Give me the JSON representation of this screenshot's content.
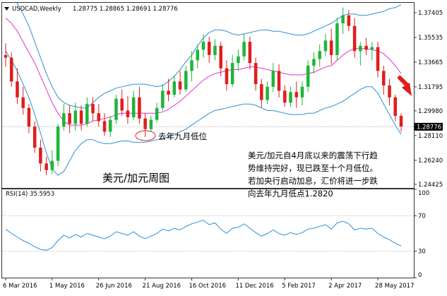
{
  "header": {
    "symbol": "USDCAD,Weekly",
    "ohlc": "1.28775 1.28865 1.28691 1.28776"
  },
  "annotations": {
    "last_year_low": "去年九月低位",
    "chart_label": "美元/加元周图",
    "note_lines": [
      "美元/加元自4月底以来的震荡下行趋",
      "势维持完好，现已跌至十个月低位。",
      "若加央行启动加息，汇价将进一步跌",
      "向去年九月低点1.2820"
    ]
  },
  "rsi_panel": {
    "label": "RSI(14) 35.5953"
  },
  "chart_data": [
    {
      "type": "candlestick",
      "price_ticks": [
        "1.37405",
        "1.35535",
        "1.33665",
        "1.31795",
        "1.29980",
        "1.28110",
        "1.26240",
        "1.24425"
      ],
      "price_tick_values": [
        1.37405,
        1.35535,
        1.33665,
        1.31795,
        1.2998,
        1.2811,
        1.2624,
        1.24425
      ],
      "current_price": "1.28776",
      "ylim": [
        1.2415,
        1.3815
      ],
      "x_tick_labels": [
        "6 Mar 2016",
        "1 May 2016",
        "26 Jun 2016",
        "21 Aug 2016",
        "16 Oct 2016",
        "11 Dec 2016",
        "5 Feb 2017",
        "2 Apr 2017",
        "28 May 2017"
      ],
      "x_tick_week_index": [
        0,
        8,
        16,
        24,
        32,
        40,
        48,
        56,
        64
      ],
      "bars_week_start": "6 Mar 2016",
      "colors": {
        "up": "#1fb53a",
        "down": "#e01e1e",
        "bands": "#2e8fd6",
        "middle": "#e033d6"
      },
      "ohlc": [
        [
          1.342,
          1.351,
          1.333,
          1.34
        ],
        [
          1.34,
          1.344,
          1.318,
          1.322
        ],
        [
          1.322,
          1.332,
          1.305,
          1.31
        ],
        [
          1.31,
          1.318,
          1.297,
          1.302
        ],
        [
          1.302,
          1.305,
          1.283,
          1.288
        ],
        [
          1.288,
          1.292,
          1.268,
          1.272
        ],
        [
          1.272,
          1.278,
          1.254,
          1.26
        ],
        [
          1.26,
          1.265,
          1.251,
          1.255
        ],
        [
          1.255,
          1.27,
          1.252,
          1.262
        ],
        [
          1.262,
          1.29,
          1.258,
          1.288
        ],
        [
          1.288,
          1.305,
          1.285,
          1.298
        ],
        [
          1.298,
          1.304,
          1.283,
          1.29
        ],
        [
          1.29,
          1.306,
          1.285,
          1.3
        ],
        [
          1.3,
          1.304,
          1.285,
          1.29
        ],
        [
          1.29,
          1.31,
          1.288,
          1.305
        ],
        [
          1.305,
          1.31,
          1.292,
          1.298
        ],
        [
          1.298,
          1.305,
          1.288,
          1.292
        ],
        [
          1.292,
          1.298,
          1.281,
          1.284
        ],
        [
          1.284,
          1.296,
          1.28,
          1.293
        ],
        [
          1.293,
          1.312,
          1.29,
          1.309
        ],
        [
          1.309,
          1.316,
          1.296,
          1.3
        ],
        [
          1.3,
          1.311,
          1.29,
          1.295
        ],
        [
          1.295,
          1.315,
          1.293,
          1.31
        ],
        [
          1.31,
          1.318,
          1.29,
          1.294
        ],
        [
          1.294,
          1.298,
          1.28,
          1.286
        ],
        [
          1.286,
          1.296,
          1.284,
          1.293
        ],
        [
          1.293,
          1.306,
          1.291,
          1.302
        ],
        [
          1.302,
          1.32,
          1.3,
          1.315
        ],
        [
          1.315,
          1.324,
          1.307,
          1.312
        ],
        [
          1.312,
          1.326,
          1.31,
          1.322
        ],
        [
          1.322,
          1.33,
          1.312,
          1.316
        ],
        [
          1.316,
          1.334,
          1.314,
          1.33
        ],
        [
          1.33,
          1.345,
          1.322,
          1.338
        ],
        [
          1.338,
          1.35,
          1.332,
          1.346
        ],
        [
          1.346,
          1.358,
          1.34,
          1.352
        ],
        [
          1.352,
          1.356,
          1.336,
          1.342
        ],
        [
          1.342,
          1.354,
          1.338,
          1.349
        ],
        [
          1.349,
          1.352,
          1.326,
          1.332
        ],
        [
          1.332,
          1.338,
          1.315,
          1.32
        ],
        [
          1.32,
          1.342,
          1.318,
          1.336
        ],
        [
          1.336,
          1.346,
          1.33,
          1.341
        ],
        [
          1.341,
          1.358,
          1.338,
          1.352
        ],
        [
          1.352,
          1.356,
          1.331,
          1.336
        ],
        [
          1.336,
          1.34,
          1.315,
          1.32
        ],
        [
          1.32,
          1.324,
          1.302,
          1.308
        ],
        [
          1.308,
          1.322,
          1.305,
          1.318
        ],
        [
          1.318,
          1.336,
          1.314,
          1.33
        ],
        [
          1.33,
          1.335,
          1.31,
          1.315
        ],
        [
          1.315,
          1.319,
          1.303,
          1.306
        ],
        [
          1.306,
          1.318,
          1.303,
          1.314
        ],
        [
          1.314,
          1.322,
          1.302,
          1.31
        ],
        [
          1.31,
          1.322,
          1.304,
          1.318
        ],
        [
          1.318,
          1.338,
          1.314,
          1.334
        ],
        [
          1.334,
          1.344,
          1.328,
          1.339
        ],
        [
          1.339,
          1.35,
          1.333,
          1.345
        ],
        [
          1.345,
          1.358,
          1.341,
          1.353
        ],
        [
          1.353,
          1.362,
          1.335,
          1.342
        ],
        [
          1.342,
          1.37,
          1.338,
          1.366
        ],
        [
          1.366,
          1.378,
          1.358,
          1.372
        ],
        [
          1.372,
          1.376,
          1.36,
          1.364
        ],
        [
          1.364,
          1.37,
          1.34,
          1.345
        ],
        [
          1.345,
          1.352,
          1.334,
          1.349
        ],
        [
          1.349,
          1.355,
          1.342,
          1.346
        ],
        [
          1.346,
          1.352,
          1.338,
          1.348
        ],
        [
          1.348,
          1.352,
          1.325,
          1.33
        ],
        [
          1.33,
          1.334,
          1.312,
          1.319
        ],
        [
          1.319,
          1.324,
          1.304,
          1.31
        ],
        [
          1.31,
          1.312,
          1.292,
          1.296
        ],
        [
          1.296,
          1.298,
          1.284,
          1.288
        ]
      ],
      "upper_band": [
        1.395,
        1.388,
        1.381,
        1.373,
        1.364,
        1.352,
        1.34,
        1.328,
        1.318,
        1.31,
        1.306,
        1.304,
        1.303,
        1.302,
        1.302,
        1.306,
        1.31,
        1.313,
        1.315,
        1.317,
        1.318,
        1.319,
        1.32,
        1.32,
        1.32,
        1.319,
        1.318,
        1.319,
        1.322,
        1.326,
        1.331,
        1.337,
        1.342,
        1.349,
        1.355,
        1.359,
        1.361,
        1.361,
        1.36,
        1.358,
        1.357,
        1.358,
        1.359,
        1.36,
        1.361,
        1.361,
        1.36,
        1.36,
        1.359,
        1.358,
        1.357,
        1.357,
        1.358,
        1.36,
        1.362,
        1.364,
        1.366,
        1.369,
        1.372,
        1.373,
        1.373,
        1.372,
        1.372,
        1.373,
        1.374,
        1.375,
        1.377,
        1.378,
        1.38
      ],
      "middle_band": [
        1.37,
        1.366,
        1.36,
        1.352,
        1.344,
        1.336,
        1.326,
        1.316,
        1.306,
        1.298,
        1.292,
        1.289,
        1.289,
        1.289,
        1.29,
        1.292,
        1.293,
        1.294,
        1.295,
        1.297,
        1.298,
        1.298,
        1.298,
        1.298,
        1.298,
        1.298,
        1.298,
        1.299,
        1.301,
        1.304,
        1.307,
        1.311,
        1.315,
        1.319,
        1.323,
        1.326,
        1.328,
        1.329,
        1.33,
        1.331,
        1.331,
        1.332,
        1.333,
        1.333,
        1.332,
        1.331,
        1.33,
        1.329,
        1.328,
        1.327,
        1.327,
        1.327,
        1.328,
        1.329,
        1.331,
        1.333,
        1.334,
        1.338,
        1.342,
        1.345,
        1.347,
        1.347,
        1.347,
        1.346,
        1.345,
        1.343,
        1.339,
        1.334,
        1.328
      ],
      "lower_band": [
        1.345,
        1.338,
        1.33,
        1.32,
        1.31,
        1.297,
        1.283,
        1.268,
        1.256,
        1.251,
        1.254,
        1.262,
        1.27,
        1.275,
        1.278,
        1.278,
        1.276,
        1.275,
        1.275,
        1.276,
        1.277,
        1.277,
        1.276,
        1.276,
        1.276,
        1.277,
        1.278,
        1.279,
        1.28,
        1.282,
        1.284,
        1.286,
        1.289,
        1.292,
        1.295,
        1.298,
        1.3,
        1.301,
        1.302,
        1.303,
        1.304,
        1.305,
        1.305,
        1.304,
        1.302,
        1.3,
        1.3,
        1.299,
        1.298,
        1.297,
        1.297,
        1.297,
        1.298,
        1.298,
        1.3,
        1.302,
        1.303,
        1.305,
        1.307,
        1.31,
        1.313,
        1.316,
        1.318,
        1.318,
        1.313,
        1.305,
        1.297,
        1.289,
        1.282
      ]
    },
    {
      "type": "line",
      "name": "RSI(14)",
      "ylim": [
        0,
        100
      ],
      "y_ticks": [
        100,
        70,
        30,
        0
      ],
      "values": [
        55,
        50,
        46,
        42,
        39,
        35,
        32,
        31,
        34,
        42,
        48,
        45,
        49,
        46,
        50,
        48,
        46,
        44,
        47,
        52,
        50,
        48,
        52,
        47,
        44,
        47,
        50,
        55,
        53,
        56,
        54,
        58,
        61,
        63,
        65,
        60,
        62,
        55,
        50,
        56,
        57,
        61,
        56,
        51,
        47,
        50,
        54,
        50,
        48,
        51,
        49,
        51,
        55,
        56,
        58,
        60,
        55,
        62,
        64,
        61,
        54,
        56,
        55,
        56,
        50,
        46,
        43,
        39,
        36
      ]
    }
  ]
}
